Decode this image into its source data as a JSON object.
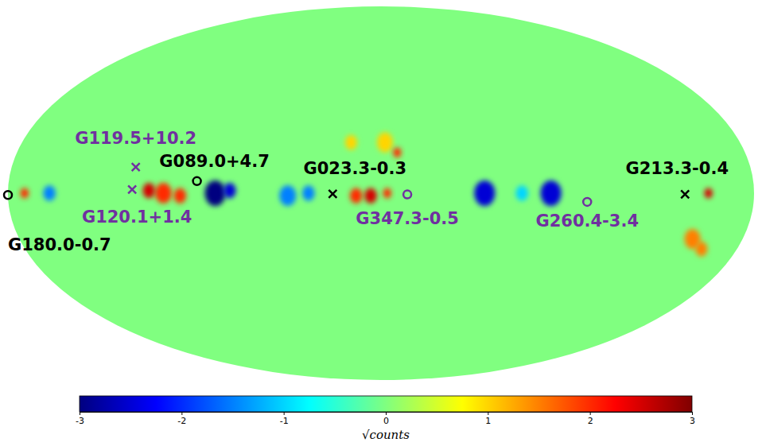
{
  "chart_data": {
    "type": "map",
    "background_value": 0,
    "sources": [
      {
        "name": "G119.5+10.2",
        "l": 119.5,
        "b": 10.2,
        "marker": "x",
        "color": "#7030a0"
      },
      {
        "name": "G120.1+1.4",
        "l": 120.1,
        "b": 1.4,
        "marker": "x",
        "color": "#7030a0"
      },
      {
        "name": "G089.0+4.7",
        "l": 89.0,
        "b": 4.7,
        "marker": "o",
        "color": "#000000"
      },
      {
        "name": "G180.0-0.7",
        "l": 180.0,
        "b": -0.7,
        "marker": "o",
        "color": "#000000"
      },
      {
        "name": "G023.3-0.3",
        "l": 23.3,
        "b": -0.3,
        "marker": "x",
        "color": "#000000"
      },
      {
        "name": "G347.3-0.5",
        "l": 347.3,
        "b": -0.5,
        "marker": "o",
        "color": "#7030a0"
      },
      {
        "name": "G260.4-3.4",
        "l": 260.4,
        "b": -3.4,
        "marker": "o",
        "color": "#7030a0"
      },
      {
        "name": "G213.3-0.4",
        "l": 213.3,
        "b": -0.4,
        "marker": "x",
        "color": "#000000"
      }
    ],
    "residual_patches": [
      {
        "l": 80,
        "b": 0,
        "size": 5,
        "value": -3
      },
      {
        "l": 73,
        "b": 1,
        "size": 3,
        "value": -2.5
      },
      {
        "l": 45,
        "b": -1,
        "size": 4,
        "value": -1.5
      },
      {
        "l": 35,
        "b": 0,
        "size": 3,
        "value": -1.5
      },
      {
        "l": 12,
        "b": -1,
        "size": 3,
        "value": 2
      },
      {
        "l": 5,
        "b": -1,
        "size": 3,
        "value": 2.5
      },
      {
        "l": -3,
        "b": 0,
        "size": 2,
        "value": 2
      },
      {
        "l": -50,
        "b": 0,
        "size": 5,
        "value": -2.5
      },
      {
        "l": -68,
        "b": 0,
        "size": 3,
        "value": -1
      },
      {
        "l": -82,
        "b": 0,
        "size": 5,
        "value": -2.5
      },
      {
        "l": 105,
        "b": 0,
        "size": 4,
        "value": 2
      },
      {
        "l": 112,
        "b": 1,
        "size": 3,
        "value": 2.5
      },
      {
        "l": 97,
        "b": -1,
        "size": 3,
        "value": 2
      },
      {
        "l": 160,
        "b": 0,
        "size": 3,
        "value": -1.5
      },
      {
        "l": 172,
        "b": 0,
        "size": 2,
        "value": 2
      },
      {
        "l": -158,
        "b": 0,
        "size": 2,
        "value": 2.5
      },
      {
        "l": -155,
        "b": -18,
        "size": 4,
        "value": 1.5
      },
      {
        "l": -162,
        "b": -22,
        "size": 3,
        "value": 1.5
      },
      {
        "l": -2,
        "b": 20,
        "size": 4,
        "value": 1
      },
      {
        "l": -8,
        "b": 16,
        "size": 2,
        "value": 2
      },
      {
        "l": 15,
        "b": 20,
        "size": 3,
        "value": 1
      }
    ],
    "colorbar": {
      "range": [
        -3,
        3
      ],
      "ticks": [
        -3,
        -2,
        -1,
        0,
        1,
        2,
        3
      ],
      "label": "√counts"
    }
  }
}
